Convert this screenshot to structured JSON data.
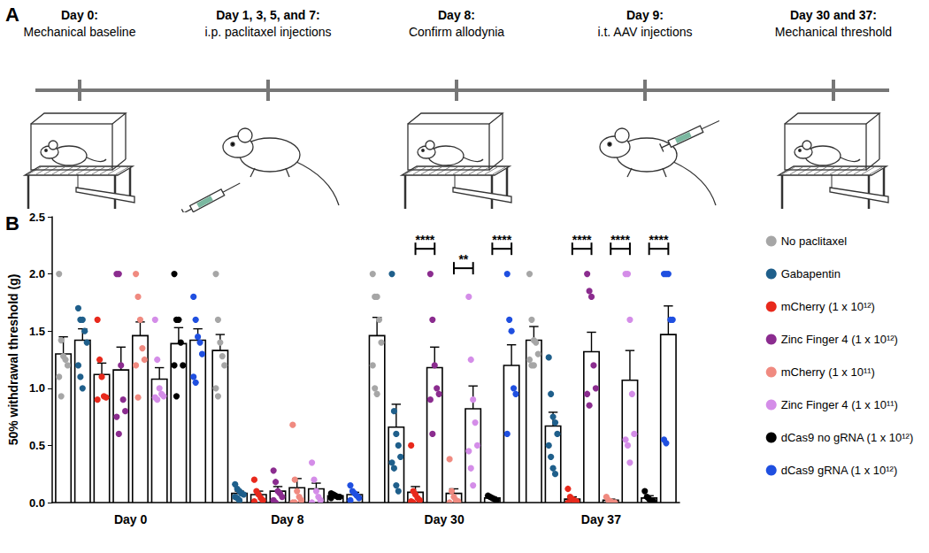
{
  "panel_a": {
    "label": "A",
    "steps": [
      {
        "day": "Day 0:",
        "text": "Mechanical baseline"
      },
      {
        "day": "Day 1, 3, 5, and 7:",
        "text": "i.p. paclitaxel injections"
      },
      {
        "day": "Day 8:",
        "text": "Confirm allodynia"
      },
      {
        "day": "Day 9:",
        "text": "i.t. AAV injections"
      },
      {
        "day": "Day 30 and 37:",
        "text": "Mechanical threshold"
      }
    ]
  },
  "panel_b_label": "B",
  "chart_data": {
    "type": "bar",
    "categories": [
      "Day 0",
      "Day 8",
      "Day 30",
      "Day 37"
    ],
    "y_label": "50% withdrawal threshold (g)",
    "ylim": [
      0,
      2.5
    ],
    "yticks": [
      {
        "value": 0,
        "label": "0.0"
      },
      {
        "value": 0.5,
        "label": "0.5"
      },
      {
        "value": 1,
        "label": "1.0"
      },
      {
        "value": 1.5,
        "label": "1.5"
      },
      {
        "value": 2,
        "label": "2.0"
      },
      {
        "value": 2.5,
        "label": "2.5"
      }
    ],
    "grid": false,
    "legend": "right",
    "marker": "circle",
    "series": [
      {
        "name": "No paclitaxel",
        "color": "#a6a6a6",
        "values": [
          1.3,
          1.33,
          1.46,
          1.42
        ],
        "errors": [
          0.15,
          0.14,
          0.16,
          0.12
        ],
        "points": [
          [
            2.0,
            1.42,
            1.28,
            1.25,
            1.2,
            1.1,
            0.93
          ],
          [
            2.0,
            1.6,
            1.4,
            1.28,
            1.2,
            1.0,
            0.93
          ],
          [
            2.0,
            1.8,
            1.8,
            1.6,
            1.4,
            1.2,
            1.0,
            0.95
          ],
          [
            2.0,
            1.6,
            1.42,
            1.4,
            1.3,
            1.25,
            1.2,
            1.2
          ]
        ]
      },
      {
        "name": "Gabapentin",
        "color": "#1f5f8b",
        "values": [
          1.42,
          0.08,
          0.66,
          0.67
        ],
        "errors": [
          0.1,
          0.02,
          0.2,
          0.12
        ],
        "points": [
          [
            1.7,
            1.6,
            1.6,
            1.5,
            1.4,
            1.2,
            1.1,
            1.0
          ],
          [
            0.16,
            0.12,
            0.1,
            0.08,
            0.07,
            0.05,
            0.04,
            0.02
          ],
          [
            2.0,
            0.8,
            0.6,
            0.5,
            0.4,
            0.35,
            0.3,
            0.15,
            0.1
          ],
          [
            1.27,
            0.95,
            0.75,
            0.7,
            0.6,
            0.5,
            0.4,
            0.3,
            0.25
          ]
        ]
      },
      {
        "name": "mCherry (1 x 10¹²)",
        "color": "#e8291c",
        "values": [
          1.12,
          0.07,
          0.09,
          0.03
        ],
        "errors": [
          0.1,
          0.03,
          0.05,
          0.02
        ],
        "points": [
          [
            1.6,
            1.25,
            1.1,
            0.93,
            0.92,
            0.9
          ],
          [
            0.2,
            0.1,
            0.07,
            0.04,
            0.02,
            0.01
          ],
          [
            0.5,
            0.1,
            0.07,
            0.04,
            0.02,
            0.01,
            0.0
          ],
          [
            0.12,
            0.05,
            0.03,
            0.02,
            0.01,
            0.0
          ]
        ]
      },
      {
        "name": "Zinc Finger 4 (1 x 10¹²)",
        "color": "#8b2c8f",
        "values": [
          1.16,
          0.1,
          1.18,
          1.32
        ],
        "errors": [
          0.2,
          0.04,
          0.18,
          0.17
        ],
        "points": [
          [
            2.0,
            2.0,
            1.2,
            0.9,
            0.8,
            0.75,
            0.6
          ],
          [
            0.28,
            0.18,
            0.1,
            0.08,
            0.05,
            0.02,
            0.0
          ],
          [
            2.0,
            1.6,
            1.2,
            1.0,
            0.95,
            0.9,
            0.6
          ],
          [
            2.0,
            1.85,
            1.8,
            1.2,
            1.0,
            0.95,
            0.85
          ]
        ]
      },
      {
        "name": "mCherry (1 x 10¹¹)",
        "color": "#f08a80",
        "values": [
          1.46,
          0.13,
          0.08,
          0.02
        ],
        "errors": [
          0.12,
          0.08,
          0.04,
          0.01
        ],
        "points": [
          [
            2.0,
            1.8,
            1.6,
            1.35,
            1.25,
            1.2,
            0.92
          ],
          [
            0.68,
            0.2,
            0.1,
            0.05,
            0.02,
            0.0,
            0.0
          ],
          [
            0.38,
            0.1,
            0.05,
            0.02,
            0.01,
            0.0
          ],
          [
            0.05,
            0.02,
            0.01,
            0.0,
            0.0
          ]
        ]
      },
      {
        "name": "Zinc Finger 4 (1 x 10¹¹)",
        "color": "#d48de8",
        "values": [
          1.08,
          0.12,
          0.82,
          1.07
        ],
        "errors": [
          0.1,
          0.05,
          0.2,
          0.26
        ],
        "points": [
          [
            1.6,
            1.25,
            1.0,
            0.95,
            0.93,
            0.92,
            0.9
          ],
          [
            0.35,
            0.2,
            0.1,
            0.05,
            0.02,
            0.0
          ],
          [
            1.8,
            1.25,
            0.9,
            0.7,
            0.5,
            0.45,
            0.3,
            0.15
          ],
          [
            2.0,
            2.0,
            1.6,
            0.95,
            0.6,
            0.55,
            0.5,
            0.35
          ]
        ]
      },
      {
        "name": "dCas9 no gRNA (1 x 10¹²)",
        "color": "#000000",
        "values": [
          1.39,
          0.06,
          0.04,
          0.04
        ],
        "errors": [
          0.14,
          0.01,
          0.01,
          0.02
        ],
        "points": [
          [
            2.0,
            1.6,
            1.6,
            1.4,
            1.2,
            1.2,
            0.93
          ],
          [
            0.08,
            0.07,
            0.06,
            0.05,
            0.05,
            0.04
          ],
          [
            0.06,
            0.05,
            0.04,
            0.03,
            0.02
          ],
          [
            0.1,
            0.05,
            0.03,
            0.02,
            0.01
          ]
        ]
      },
      {
        "name": "dCas9 gRNA (1 x 10¹²)",
        "color": "#1f4fe0",
        "values": [
          1.42,
          0.07,
          1.2,
          1.47
        ],
        "errors": [
          0.1,
          0.02,
          0.18,
          0.25
        ],
        "points": [
          [
            1.8,
            1.6,
            1.45,
            1.4,
            1.3,
            1.1,
            1.05
          ],
          [
            0.15,
            0.1,
            0.08,
            0.06,
            0.04,
            0.02
          ],
          [
            2.0,
            1.6,
            1.5,
            1.0,
            0.95,
            0.6
          ],
          [
            2.0,
            2.0,
            2.0,
            1.6,
            1.6,
            0.55,
            0.52
          ]
        ]
      }
    ],
    "comparisons": [
      {
        "category": "Day 30",
        "from": "mCherry (1 x 10¹²)",
        "to": "Zinc Finger 4 (1 x 10¹²)",
        "label": "****",
        "y": 2.22
      },
      {
        "category": "Day 30",
        "from": "mCherry (1 x 10¹¹)",
        "to": "Zinc Finger 4 (1 x 10¹¹)",
        "label": "**",
        "y": 2.05
      },
      {
        "category": "Day 30",
        "from": "dCas9 no gRNA (1 x 10¹²)",
        "to": "dCas9 gRNA (1 x 10¹²)",
        "label": "****",
        "y": 2.22
      },
      {
        "category": "Day 37",
        "from": "mCherry (1 x 10¹²)",
        "to": "Zinc Finger 4 (1 x 10¹²)",
        "label": "****",
        "y": 2.22
      },
      {
        "category": "Day 37",
        "from": "mCherry (1 x 10¹¹)",
        "to": "Zinc Finger 4 (1 x 10¹¹)",
        "label": "****",
        "y": 2.22
      },
      {
        "category": "Day 37",
        "from": "dCas9 no gRNA (1 x 10¹²)",
        "to": "dCas9 gRNA (1 x 10¹²)",
        "label": "****",
        "y": 2.22
      }
    ]
  }
}
